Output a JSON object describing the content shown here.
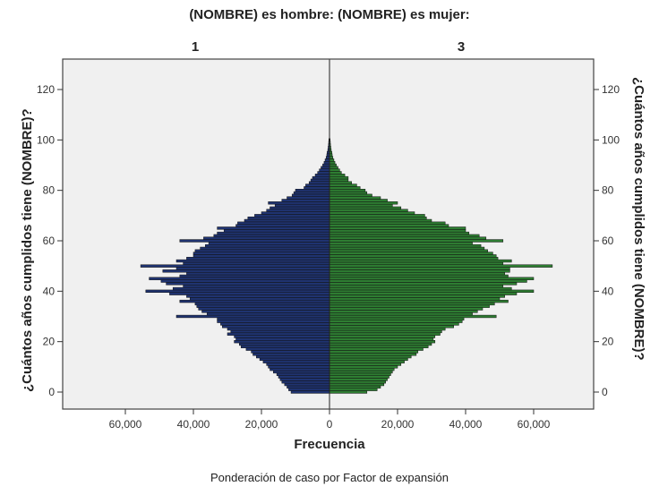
{
  "chart_data": {
    "type": "bar",
    "subtype": "population-pyramid",
    "title": "(NOMBRE) es hombre: (NOMBRE) es mujer:",
    "panels": [
      "1",
      "3"
    ],
    "xlabel": "Frecuencia",
    "ylabel": "¿Cuántos años cumplidos tiene (NOMBRE)?",
    "footnote": "Ponderación de caso por Factor de expansión",
    "x_ticks": [
      "60,000",
      "40,000",
      "20,000",
      "0",
      "20,000",
      "40,000",
      "60,000"
    ],
    "x_tick_values": [
      -60000,
      -40000,
      -20000,
      0,
      20000,
      40000,
      60000
    ],
    "y_ticks": [
      0,
      20,
      40,
      60,
      80,
      100,
      120
    ],
    "xlim": [
      -78000,
      78000
    ],
    "ylim": [
      -7,
      131
    ],
    "grid": false,
    "colors": {
      "male": "#1f3370",
      "female": "#2e7d32",
      "plot_bg": "#f0f0f0",
      "frame": "#444444"
    },
    "ages": [
      0,
      1,
      2,
      3,
      4,
      5,
      6,
      7,
      8,
      9,
      10,
      11,
      12,
      13,
      14,
      15,
      16,
      17,
      18,
      19,
      20,
      21,
      22,
      23,
      24,
      25,
      26,
      27,
      28,
      29,
      30,
      31,
      32,
      33,
      34,
      35,
      36,
      37,
      38,
      39,
      40,
      41,
      42,
      43,
      44,
      45,
      46,
      47,
      48,
      49,
      50,
      51,
      52,
      53,
      54,
      55,
      56,
      57,
      58,
      59,
      60,
      61,
      62,
      63,
      64,
      65,
      66,
      67,
      68,
      69,
      70,
      71,
      72,
      73,
      74,
      75,
      76,
      77,
      78,
      79,
      80,
      81,
      82,
      83,
      84,
      85,
      86,
      87,
      88,
      89,
      90,
      91,
      92,
      93,
      94,
      95,
      96,
      97,
      98,
      99,
      100
    ],
    "series": [
      {
        "name": "1",
        "side": "left",
        "values": [
          11300,
          12000,
          12500,
          13200,
          14000,
          14500,
          15000,
          15500,
          16500,
          17500,
          18000,
          18500,
          19500,
          20500,
          21500,
          22500,
          23000,
          24500,
          26000,
          26500,
          28000,
          27500,
          28000,
          30000,
          29000,
          30000,
          31500,
          32000,
          33000,
          33000,
          45000,
          36000,
          37500,
          38500,
          39000,
          39500,
          44000,
          41000,
          42000,
          47000,
          54000,
          46000,
          43000,
          48000,
          49500,
          53000,
          44000,
          42000,
          49000,
          45000,
          55500,
          43000,
          45000,
          42000,
          40000,
          40000,
          39500,
          38000,
          36500,
          35500,
          44000,
          37000,
          34000,
          33000,
          31000,
          33000,
          27500,
          27000,
          25000,
          24000,
          22000,
          20000,
          18500,
          17500,
          16000,
          18000,
          14000,
          12500,
          11000,
          10500,
          10000,
          7500,
          7000,
          6000,
          5500,
          5000,
          4200,
          3500,
          3000,
          2500,
          2000,
          1600,
          1300,
          1000,
          800,
          700,
          500,
          400,
          300,
          250,
          200
        ]
      },
      {
        "name": "3",
        "side": "right",
        "values": [
          11000,
          14000,
          15000,
          16000,
          16500,
          17000,
          17500,
          18000,
          18500,
          19000,
          20000,
          21000,
          22000,
          23000,
          24000,
          25500,
          26000,
          27500,
          29000,
          30000,
          31000,
          30500,
          31000,
          32500,
          33000,
          34000,
          36500,
          38000,
          39000,
          39500,
          49000,
          42000,
          43500,
          45000,
          47000,
          48500,
          52500,
          50000,
          51500,
          55000,
          60000,
          53500,
          51000,
          55000,
          58000,
          60000,
          52500,
          51500,
          53000,
          53000,
          65500,
          51000,
          53500,
          49500,
          49000,
          48000,
          46500,
          45500,
          44500,
          42000,
          51000,
          46000,
          44000,
          41000,
          40000,
          40000,
          35000,
          34000,
          30000,
          28500,
          28000,
          25000,
          23000,
          21000,
          18500,
          20000,
          17000,
          15000,
          12500,
          11000,
          10500,
          9000,
          8000,
          6500,
          5500,
          5500,
          4500,
          3500,
          3000,
          2500,
          2000,
          1600,
          1300,
          1000,
          800,
          700,
          500,
          400,
          300,
          250,
          200
        ]
      }
    ]
  }
}
